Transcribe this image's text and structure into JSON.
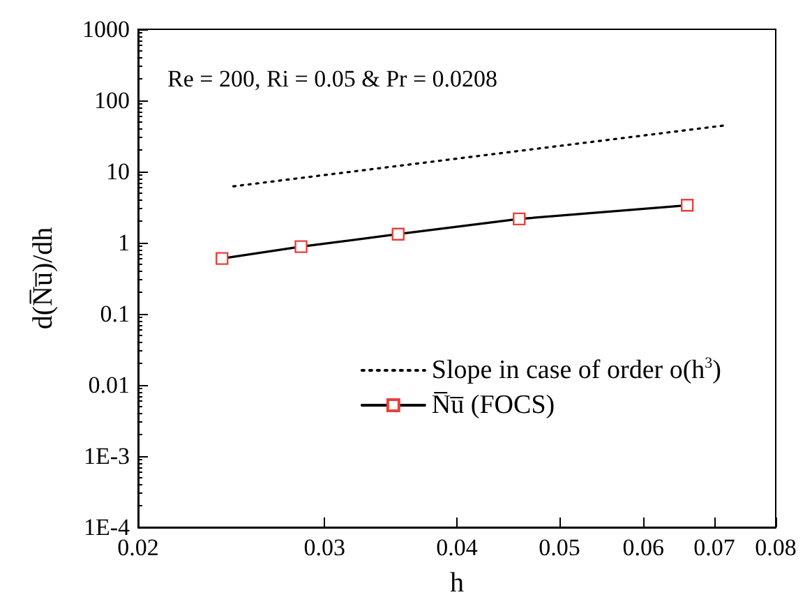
{
  "chart_data": {
    "type": "line",
    "xlabel": "h",
    "ylabel": "d(N̅u̅)/dh",
    "annotations": [
      "Re = 200, Ri = 0.05 & Pr = 0.0208"
    ],
    "log": "xy",
    "grid": false,
    "legend": "right",
    "xlim": [
      0.02,
      0.08
    ],
    "xticks": [
      0.02,
      0.03,
      0.04,
      0.05,
      0.06,
      0.07,
      0.08
    ],
    "ylim": [
      0.0001,
      1000
    ],
    "yticks": [
      {
        "value": 0.0001,
        "label": "1E-4"
      },
      {
        "value": 0.001,
        "label": "1E-3"
      },
      0.01,
      0.1,
      1,
      10,
      100,
      1000
    ],
    "series": [
      {
        "name": "Slope in case of order o(h$^{3}$)",
        "color": "#000000",
        "line_style": "dotted",
        "marker": "none",
        "x": [
          0.0246,
          0.072
        ],
        "values": [
          6.2,
          45
        ]
      },
      {
        "name": "N̅u̅ (FOCS)",
        "color": "#000000",
        "line_style": "solid",
        "marker": "square",
        "x": [
          0.024,
          0.0285,
          0.0352,
          0.0458,
          0.066
        ],
        "values": [
          0.6,
          0.88,
          1.32,
          2.16,
          3.36
        ]
      }
    ]
  }
}
